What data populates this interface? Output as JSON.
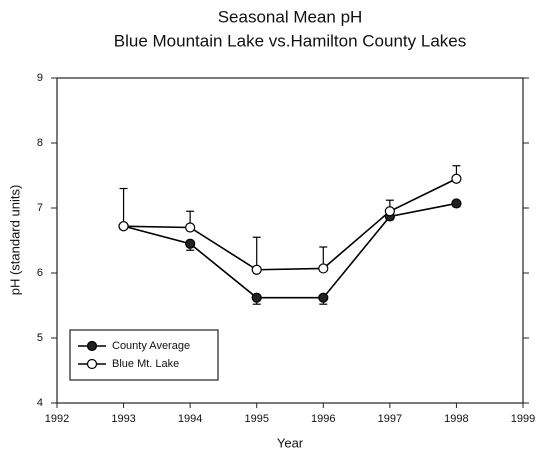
{
  "chart_data": {
    "type": "line",
    "title": [
      "Seasonal Mean pH",
      "Blue Mountain Lake vs.Hamilton County Lakes"
    ],
    "x_label": "Year",
    "y_label": "pH (standard units)",
    "x": [
      1993,
      1994,
      1995,
      1996,
      1997,
      1998
    ],
    "series": [
      {
        "name": "County Average",
        "color": "#000000",
        "marker_fill": "#222222",
        "values": [
          6.72,
          6.45,
          5.62,
          5.62,
          6.87,
          7.07
        ],
        "errors": [
          0.05,
          0.1,
          0.1,
          0.1,
          0.05,
          0.05
        ],
        "error_direction": "down"
      },
      {
        "name": "Blue Mt. Lake",
        "color": "#000000",
        "marker_fill": "#ffffff",
        "values": [
          6.72,
          6.7,
          6.05,
          6.07,
          6.95,
          7.45
        ],
        "errors": [
          0.58,
          0.25,
          0.5,
          0.33,
          0.17,
          0.2
        ],
        "error_direction": "up"
      }
    ],
    "xlim": [
      1992,
      1999
    ],
    "xticks": [
      1992,
      1993,
      1994,
      1995,
      1996,
      1997,
      1998,
      1999
    ],
    "ylim": [
      4,
      9
    ],
    "yticks": [
      4,
      5,
      6,
      7,
      8,
      9
    ],
    "legend": "lower left",
    "grid": false
  }
}
